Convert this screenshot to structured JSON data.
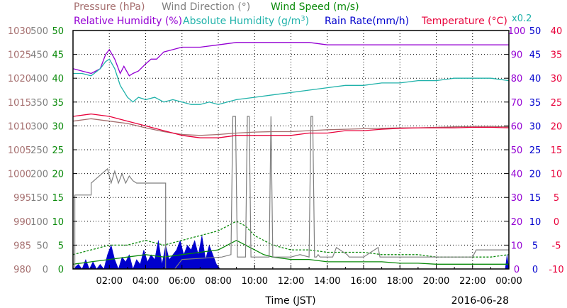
{
  "chart_data": {
    "type": "line",
    "date": "2016-06-28",
    "xlabel": "Time (JST)",
    "x_ticks": [
      "02:00",
      "04:00",
      "06:00",
      "08:00",
      "10:00",
      "12:00",
      "14:00",
      "16:00",
      "18:00",
      "20:00",
      "22:00",
      "00:00"
    ],
    "xlim_hours": [
      0,
      24
    ],
    "grid": true,
    "legend": [
      {
        "text": "Pressure (hPa)",
        "color": "#a56e6e"
      },
      {
        "text": "Wind Direction (°)",
        "color": "#7f7f7f"
      },
      {
        "text": "Wind Speed (m/s)",
        "color": "#0a8a0a"
      },
      {
        "text": "Relative Humidity (%)",
        "color": "#9400d3"
      },
      {
        "text": "Absolute Humidity (g/m",
        "sup": "3",
        "close": ")",
        "color": "#20b2aa"
      },
      {
        "text": "Rain Rate(mm/h)",
        "color": "#0000cd"
      },
      {
        "text": "Temperature (°C)",
        "color": "#e8003a"
      },
      {
        "text": "x0.2",
        "color": "#20b2aa"
      }
    ],
    "left_axes": [
      {
        "name": "Pressure (hPa)",
        "color": "#a56e6e",
        "ticks": [
          "980",
          "985",
          "990",
          "995",
          "1000",
          "1005",
          "1010",
          "1015",
          "1020",
          "1025",
          "1030"
        ]
      },
      {
        "name": "Wind Direction (°)",
        "color": "#7f7f7f",
        "ticks": [
          "0",
          "50",
          "100",
          "150",
          "200",
          "250",
          "300",
          "350",
          "400",
          "450",
          "500"
        ]
      },
      {
        "name": "Wind Speed (m/s)",
        "color": "#0a8a0a",
        "ticks": [
          "0",
          "5",
          "10",
          "15",
          "20",
          "25",
          "30",
          "35",
          "40",
          "45",
          "50"
        ]
      }
    ],
    "right_axes": [
      {
        "name": "Relative Humidity (%)",
        "color": "#9400d3",
        "ticks": [
          "0",
          "10",
          "20",
          "30",
          "40",
          "50",
          "60",
          "70",
          "80",
          "90",
          "100"
        ]
      },
      {
        "name": "Rain Rate(mm/h)",
        "color": "#0000cd",
        "ticks": [
          "0",
          "5",
          "10",
          "15",
          "20",
          "25",
          "30",
          "35",
          "40",
          "45",
          "50"
        ]
      },
      {
        "name": "Temperature (°C)",
        "color": "#e8003a",
        "ticks": [
          "-10",
          "-5",
          "0",
          "5",
          "10",
          "15",
          "20",
          "25",
          "30",
          "35",
          "40"
        ]
      }
    ],
    "series": [
      {
        "name": "Relative Humidity (%)",
        "axis": "right0",
        "color": "#9400d3",
        "x": [
          0,
          0.5,
          1,
          1.5,
          1.8,
          2,
          2.3,
          2.6,
          2.8,
          3.1,
          3.3,
          3.6,
          4,
          4.3,
          4.6,
          5,
          5.5,
          6,
          7,
          8,
          9,
          10,
          11,
          12,
          13,
          14,
          15,
          16,
          17,
          18,
          19,
          20,
          21,
          22,
          23,
          24
        ],
        "y": [
          84,
          83,
          82,
          84,
          90,
          92,
          88,
          82,
          85,
          81,
          82,
          83,
          86,
          88,
          88,
          91,
          92,
          93,
          93,
          94,
          95,
          95,
          95,
          95,
          95,
          94,
          94,
          94,
          94,
          94,
          94,
          94,
          94,
          94,
          94,
          94
        ]
      },
      {
        "name": "Absolute Humidity (g/m3) x0.2",
        "axis": "right0",
        "color": "#20b2aa",
        "x": [
          0,
          0.5,
          1,
          1.5,
          1.8,
          2,
          2.3,
          2.6,
          3,
          3.3,
          3.6,
          4,
          4.5,
          5,
          5.5,
          6,
          6.5,
          7,
          7.5,
          8,
          8.5,
          9,
          10,
          11,
          12,
          13,
          14,
          15,
          16,
          17,
          18,
          19,
          20,
          21,
          22,
          23,
          24
        ],
        "y": [
          82,
          82,
          81,
          84,
          87,
          88,
          84,
          77,
          72,
          70,
          72,
          71,
          72,
          70,
          71,
          70,
          69,
          69,
          70,
          69,
          70,
          71,
          72,
          73,
          74,
          75,
          76,
          77,
          77,
          78,
          78,
          79,
          79,
          80,
          80,
          80,
          79
        ]
      },
      {
        "name": "Temperature (°C)",
        "axis": "right2",
        "color": "#e8003a",
        "x": [
          0,
          1,
          2,
          3,
          4,
          5,
          6,
          7,
          8,
          9,
          10,
          11,
          12,
          13,
          14,
          15,
          16,
          17,
          18,
          19,
          20,
          21,
          22,
          23,
          24
        ],
        "y": [
          22,
          22.5,
          22,
          21,
          20,
          19,
          18,
          17.5,
          17.5,
          18,
          18,
          18,
          18,
          18.5,
          18.5,
          19,
          19,
          19.3,
          19.5,
          19.6,
          19.6,
          19.6,
          19.7,
          19.7,
          19.6
        ]
      },
      {
        "name": "Pressure (hPa)",
        "axis": "left0",
        "color": "#a56e6e",
        "x": [
          0,
          1,
          2,
          3,
          4,
          5,
          6,
          7,
          8,
          9,
          10,
          11,
          12,
          13,
          14,
          15,
          16,
          17,
          18,
          19,
          20,
          21,
          22,
          23,
          24
        ],
        "y": [
          1011,
          1011.5,
          1011,
          1010.5,
          1009.6,
          1008.8,
          1008.2,
          1008,
          1008.2,
          1008.5,
          1008.7,
          1008.8,
          1008.8,
          1009,
          1009.2,
          1009.3,
          1009.4,
          1009.5,
          1009.6,
          1009.6,
          1009.7,
          1009.8,
          1009.9,
          1009.9,
          1009.8
        ]
      },
      {
        "name": "Wind Direction (°)",
        "axis": "left1",
        "color": "#7f7f7f",
        "x": [
          0.1,
          0.1,
          1,
          1,
          1.6,
          1.9,
          2.1,
          2.3,
          2.5,
          2.7,
          2.9,
          3.1,
          3.3,
          3.5,
          5.1,
          5.1,
          5.6,
          6,
          8.2,
          8.7,
          8.8,
          8.95,
          9.05,
          9.5,
          9.6,
          9.7,
          9.8,
          10,
          10.8,
          10.9,
          11,
          11.1,
          12,
          12.5,
          13,
          13.1,
          13.2,
          13.3,
          13.4,
          13.5,
          13.6,
          14.3,
          14.5,
          15.1,
          15.2,
          15.5,
          16,
          16.8,
          16.9,
          17.2,
          18,
          20,
          22,
          22.2,
          24
        ],
        "y": [
          0,
          155,
          155,
          180,
          200,
          210,
          180,
          205,
          180,
          200,
          180,
          195,
          185,
          180,
          180,
          0,
          0,
          20,
          25,
          30,
          320,
          320,
          25,
          25,
          320,
          320,
          25,
          25,
          25,
          320,
          25,
          25,
          25,
          30,
          25,
          320,
          320,
          25,
          25,
          30,
          25,
          25,
          45,
          30,
          25,
          25,
          25,
          45,
          25,
          25,
          25,
          25,
          25,
          40,
          40
        ]
      },
      {
        "name": "Wind Speed (m/s)",
        "axis": "left2",
        "color": "#0a8a0a",
        "x": [
          0,
          1,
          2,
          3,
          4,
          5,
          6,
          7,
          8,
          8.5,
          9,
          9.5,
          10,
          10.5,
          11,
          12,
          13,
          14,
          15,
          16,
          17,
          18,
          19,
          20,
          21,
          22,
          23,
          24
        ],
        "y": [
          1,
          1.5,
          2,
          2.5,
          3,
          2.5,
          3,
          3.5,
          4,
          5,
          6,
          5,
          4,
          3,
          2.5,
          2,
          2,
          1.5,
          1.5,
          1.5,
          1.5,
          1.2,
          1.2,
          1,
          1,
          1,
          1,
          1
        ]
      },
      {
        "name": "Wind Speed gust (m/s)",
        "axis": "left2",
        "color": "#0a8a0a",
        "x": [
          0,
          1,
          2,
          3,
          4,
          5,
          6,
          7,
          8,
          8.5,
          9,
          9.5,
          10,
          10.5,
          11,
          12,
          13,
          14,
          15,
          16,
          17,
          18,
          19,
          20,
          21,
          22,
          23,
          24
        ],
        "y": [
          3,
          4,
          5,
          5,
          6,
          5,
          6,
          7,
          8,
          9,
          10,
          9,
          7,
          6,
          5,
          4,
          4,
          3.5,
          3.5,
          3.5,
          3,
          3,
          3,
          2.5,
          2.5,
          2.5,
          2.5,
          3
        ]
      },
      {
        "name": "Rain Rate(mm/h)",
        "axis": "right1",
        "color": "#0000cd",
        "style": "area",
        "x": [
          0,
          0.3,
          0.5,
          0.7,
          0.9,
          1.1,
          1.3,
          1.5,
          1.7,
          1.9,
          2.1,
          2.3,
          2.5,
          2.7,
          2.9,
          3.1,
          3.3,
          3.5,
          3.7,
          3.9,
          4.1,
          4.3,
          4.5,
          4.7,
          4.9,
          5.1,
          5.3,
          5.5,
          5.7,
          5.9,
          6.1,
          6.3,
          6.5,
          6.7,
          6.9,
          7.1,
          7.3,
          7.5,
          7.7,
          7.9,
          8.1,
          23.8,
          23.9,
          24
        ],
        "y": [
          0,
          1,
          0,
          2,
          0,
          1.5,
          0,
          1,
          0,
          3,
          5,
          2,
          0,
          2.5,
          1.5,
          3,
          0,
          2,
          1,
          4,
          1.5,
          3,
          2,
          6,
          1,
          5,
          2,
          3,
          4,
          6,
          3,
          5,
          4,
          6,
          3,
          7,
          2,
          5,
          3,
          1,
          0,
          0,
          3,
          0
        ]
      }
    ]
  }
}
